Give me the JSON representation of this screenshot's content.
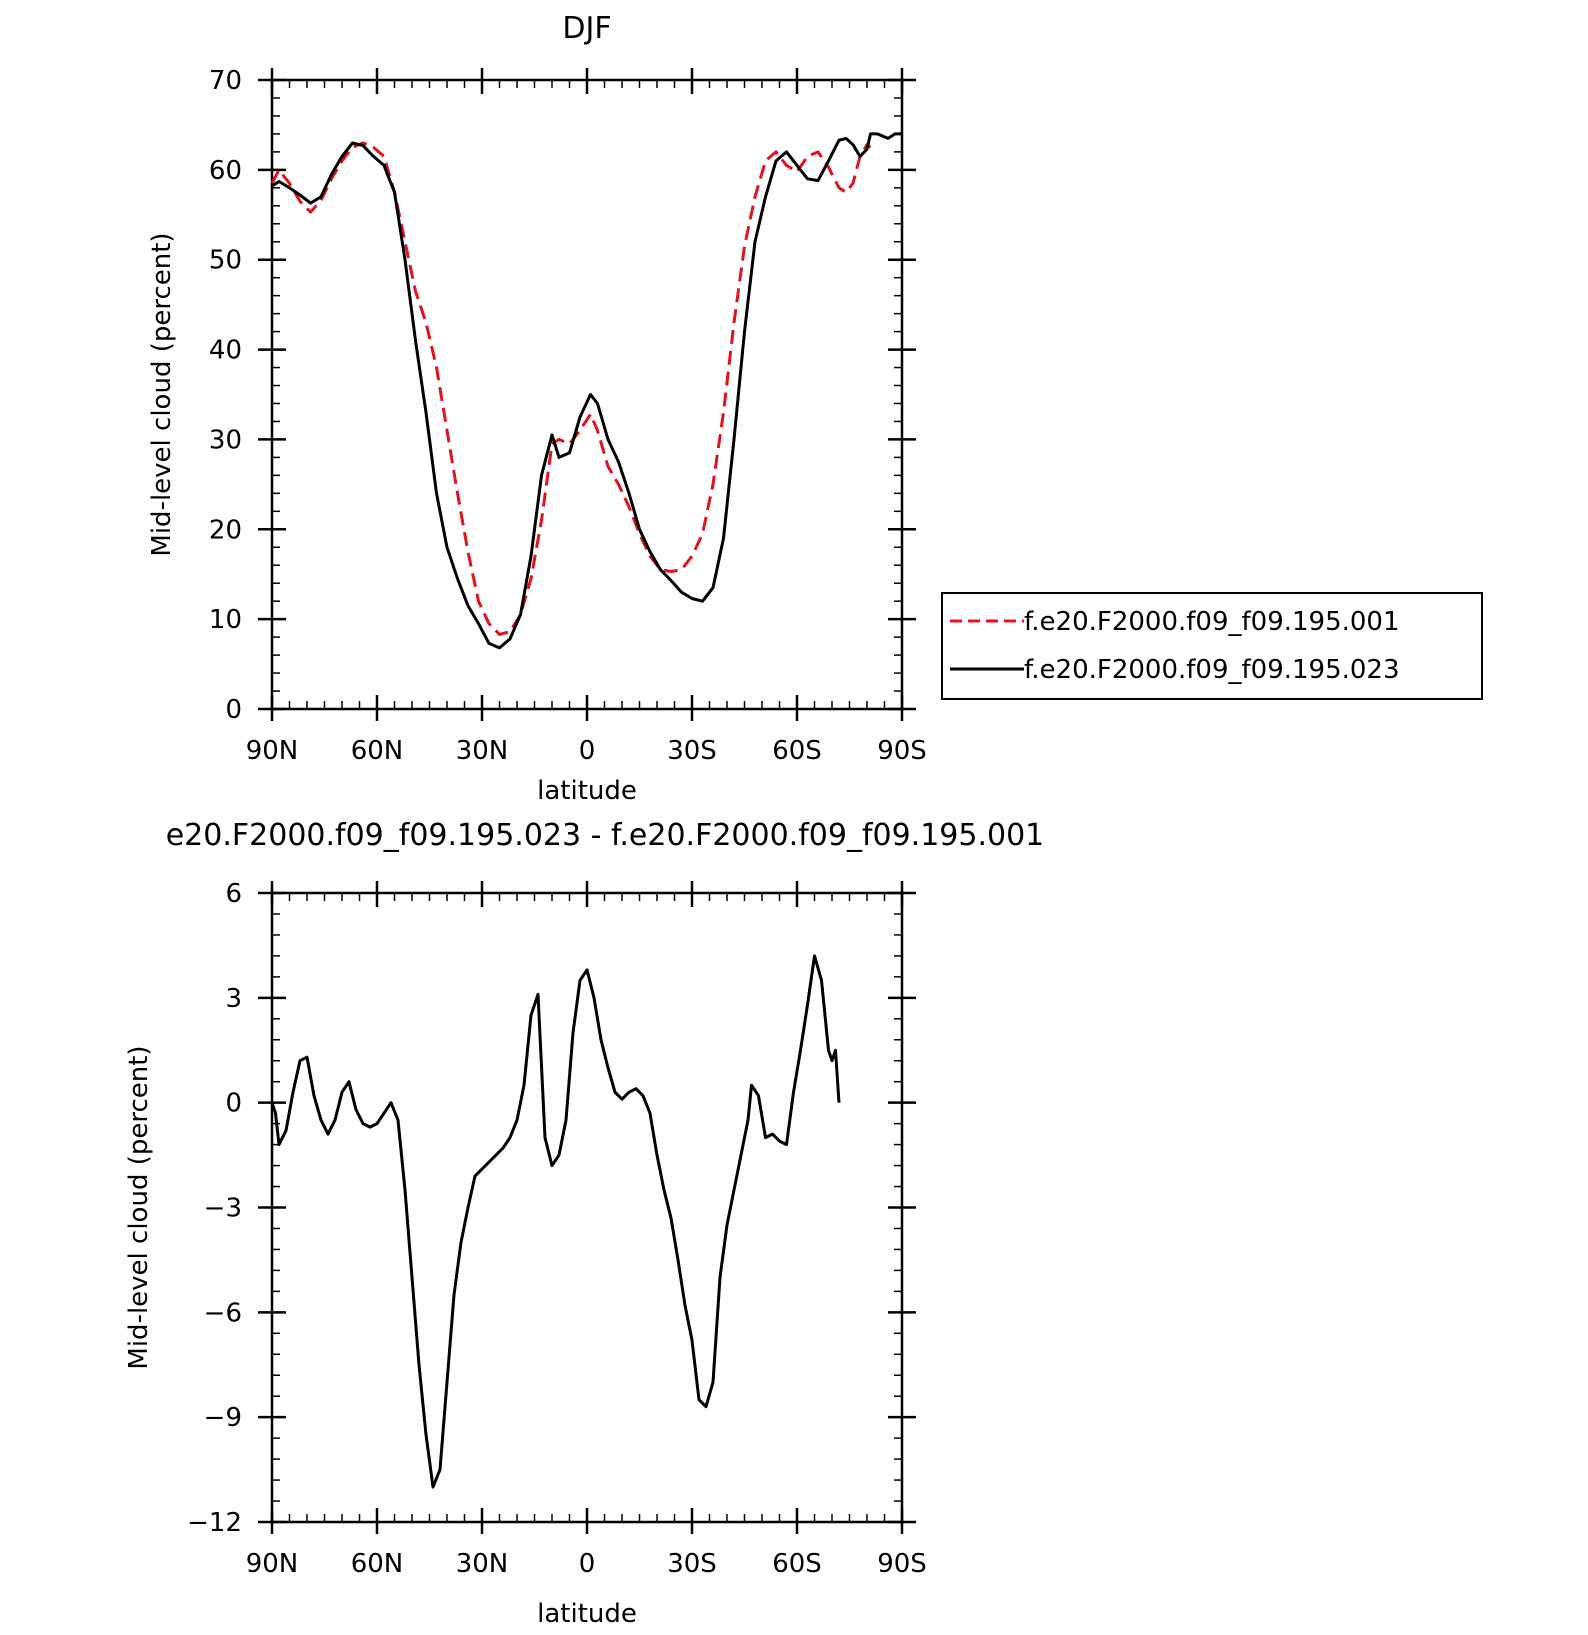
{
  "chart_data": [
    {
      "type": "line",
      "title": "DJF",
      "xlabel": "latitude",
      "ylabel": "Mid-level cloud (percent)",
      "xlim": [
        90,
        -90
      ],
      "ylim": [
        0,
        70
      ],
      "x_ticks": [
        {
          "value": 90,
          "label": "90N"
        },
        {
          "value": 60,
          "label": "60N"
        },
        {
          "value": 30,
          "label": "30N"
        },
        {
          "value": 0,
          "label": "0"
        },
        {
          "value": -30,
          "label": "30S"
        },
        {
          "value": -60,
          "label": "60S"
        },
        {
          "value": -90,
          "label": "90S"
        }
      ],
      "y_ticks": [
        {
          "value": 0,
          "label": "0"
        },
        {
          "value": 10,
          "label": "10"
        },
        {
          "value": 20,
          "label": "20"
        },
        {
          "value": 30,
          "label": "30"
        },
        {
          "value": 40,
          "label": "40"
        },
        {
          "value": 50,
          "label": "50"
        },
        {
          "value": 60,
          "label": "60"
        },
        {
          "value": 70,
          "label": "70"
        }
      ],
      "legend": {
        "placement": "right"
      },
      "series": [
        {
          "name": "f.e20.F2000.f09_f09.195.001",
          "color": "#e0141e",
          "dash": "dashed",
          "points": [
            [
              90,
              58.5
            ],
            [
              88,
              60
            ],
            [
              85,
              58.5
            ],
            [
              82,
              56.5
            ],
            [
              79,
              55.3
            ],
            [
              76,
              56.6
            ],
            [
              73,
              59
            ],
            [
              70,
              61
            ],
            [
              67,
              62.5
            ],
            [
              64,
              63
            ],
            [
              61,
              62.5
            ],
            [
              58,
              61.5
            ],
            [
              55,
              57.5
            ],
            [
              52,
              52
            ],
            [
              49,
              46.5
            ],
            [
              46,
              43
            ],
            [
              43,
              38
            ],
            [
              40,
              31
            ],
            [
              37,
              24
            ],
            [
              34,
              17.5
            ],
            [
              31,
              12
            ],
            [
              28,
              9.5
            ],
            [
              25,
              8.3
            ],
            [
              22,
              8.6
            ],
            [
              19,
              10.5
            ],
            [
              16,
              14.5
            ],
            [
              13,
              21
            ],
            [
              10,
              29.5
            ],
            [
              8,
              30
            ],
            [
              5,
              29.5
            ],
            [
              2,
              31
            ],
            [
              -1,
              32.8
            ],
            [
              -3,
              31
            ],
            [
              -6,
              27
            ],
            [
              -9,
              25
            ],
            [
              -12,
              22.5
            ],
            [
              -15,
              19.5
            ],
            [
              -18,
              17
            ],
            [
              -21,
              15.5
            ],
            [
              -24,
              15.3
            ],
            [
              -27,
              15.5
            ],
            [
              -30,
              17
            ],
            [
              -33,
              19.5
            ],
            [
              -36,
              25
            ],
            [
              -39,
              33
            ],
            [
              -42,
              43
            ],
            [
              -45,
              51.5
            ],
            [
              -48,
              57
            ],
            [
              -51,
              61
            ],
            [
              -54,
              62
            ],
            [
              -57,
              60.5
            ],
            [
              -60,
              59.8
            ],
            [
              -63,
              61.5
            ],
            [
              -66,
              62
            ],
            [
              -69,
              60.3
            ],
            [
              -72,
              58
            ],
            [
              -74,
              57.5
            ],
            [
              -76,
              58.5
            ],
            [
              -78,
              61.5
            ],
            [
              -80,
              62.8
            ],
            [
              -81,
              62.5
            ]
          ]
        },
        {
          "name": "f.e20.F2000.f09_f09.195.023",
          "color": "#000000",
          "dash": "solid",
          "points": [
            [
              90,
              58.2
            ],
            [
              88,
              58.7
            ],
            [
              85,
              58
            ],
            [
              82,
              57.2
            ],
            [
              79,
              56.3
            ],
            [
              76,
              57
            ],
            [
              73,
              59.5
            ],
            [
              70,
              61.5
            ],
            [
              67,
              63
            ],
            [
              64,
              62.7
            ],
            [
              61,
              61.5
            ],
            [
              58,
              60.5
            ],
            [
              55,
              57.5
            ],
            [
              52,
              50
            ],
            [
              49,
              41
            ],
            [
              46,
              33
            ],
            [
              43,
              24
            ],
            [
              40,
              18
            ],
            [
              37,
              14.5
            ],
            [
              34,
              11.5
            ],
            [
              31,
              9.5
            ],
            [
              28,
              7.3
            ],
            [
              25,
              6.8
            ],
            [
              22,
              7.8
            ],
            [
              19,
              10.5
            ],
            [
              16,
              17
            ],
            [
              13,
              26
            ],
            [
              10,
              30.5
            ],
            [
              8,
              28
            ],
            [
              5,
              28.5
            ],
            [
              2,
              32.5
            ],
            [
              -1,
              35
            ],
            [
              -3,
              34
            ],
            [
              -6,
              30
            ],
            [
              -9,
              27.5
            ],
            [
              -12,
              24
            ],
            [
              -15,
              20
            ],
            [
              -18,
              17.5
            ],
            [
              -21,
              15.5
            ],
            [
              -24,
              14.3
            ],
            [
              -27,
              13
            ],
            [
              -30,
              12.3
            ],
            [
              -33,
              12
            ],
            [
              -36,
              13.5
            ],
            [
              -39,
              19
            ],
            [
              -42,
              30
            ],
            [
              -45,
              42
            ],
            [
              -48,
              52
            ],
            [
              -51,
              57
            ],
            [
              -54,
              61
            ],
            [
              -57,
              62
            ],
            [
              -60,
              60.5
            ],
            [
              -63,
              59
            ],
            [
              -66,
              58.8
            ],
            [
              -69,
              61
            ],
            [
              -72,
              63.3
            ],
            [
              -74,
              63.5
            ],
            [
              -76,
              62.8
            ],
            [
              -78,
              61.5
            ],
            [
              -80,
              62.3
            ],
            [
              -81,
              64
            ],
            [
              -83,
              64
            ],
            [
              -86,
              63.5
            ],
            [
              -88,
              64
            ],
            [
              -90,
              64
            ]
          ]
        }
      ]
    },
    {
      "type": "line",
      "title": "e20.F2000.f09_f09.195.023 - f.e20.F2000.f09_f09.195.001",
      "xlabel": "latitude",
      "ylabel": "Mid-level cloud (percent)",
      "xlim": [
        90,
        -90
      ],
      "ylim": [
        -12,
        6
      ],
      "x_ticks": [
        {
          "value": 90,
          "label": "90N"
        },
        {
          "value": 60,
          "label": "60N"
        },
        {
          "value": 30,
          "label": "30N"
        },
        {
          "value": 0,
          "label": "0"
        },
        {
          "value": -30,
          "label": "30S"
        },
        {
          "value": -60,
          "label": "60S"
        },
        {
          "value": -90,
          "label": "90S"
        }
      ],
      "y_ticks": [
        {
          "value": -12,
          "label": "−12"
        },
        {
          "value": -9,
          "label": "−9"
        },
        {
          "value": -6,
          "label": "−6"
        },
        {
          "value": -3,
          "label": "−3"
        },
        {
          "value": 0,
          "label": "0"
        },
        {
          "value": 3,
          "label": "3"
        },
        {
          "value": 6,
          "label": "6"
        }
      ],
      "series": [
        {
          "color": "#000000",
          "dash": "solid",
          "points": [
            [
              90,
              0
            ],
            [
              89,
              -0.3
            ],
            [
              88,
              -1.2
            ],
            [
              86,
              -0.8
            ],
            [
              84,
              0.3
            ],
            [
              82,
              1.2
            ],
            [
              80,
              1.3
            ],
            [
              78,
              0.2
            ],
            [
              76,
              -0.5
            ],
            [
              74,
              -0.9
            ],
            [
              72,
              -0.5
            ],
            [
              70,
              0.3
            ],
            [
              68,
              0.6
            ],
            [
              66,
              -0.2
            ],
            [
              64,
              -0.6
            ],
            [
              62,
              -0.7
            ],
            [
              60,
              -0.6
            ],
            [
              58,
              -0.3
            ],
            [
              56,
              0
            ],
            [
              54,
              -0.5
            ],
            [
              52,
              -2.5
            ],
            [
              50,
              -5
            ],
            [
              48,
              -7.5
            ],
            [
              46,
              -9.5
            ],
            [
              44,
              -11
            ],
            [
              42,
              -10.5
            ],
            [
              40,
              -8
            ],
            [
              38,
              -5.5
            ],
            [
              36,
              -4
            ],
            [
              34,
              -3
            ],
            [
              32,
              -2.1
            ],
            [
              30,
              -1.9
            ],
            [
              28,
              -1.7
            ],
            [
              26,
              -1.5
            ],
            [
              24,
              -1.3
            ],
            [
              22,
              -1
            ],
            [
              20,
              -0.5
            ],
            [
              18,
              0.5
            ],
            [
              16,
              2.5
            ],
            [
              14,
              3.1
            ],
            [
              12,
              -1
            ],
            [
              10,
              -1.8
            ],
            [
              8,
              -1.5
            ],
            [
              6,
              -0.5
            ],
            [
              4,
              2
            ],
            [
              2,
              3.5
            ],
            [
              0,
              3.8
            ],
            [
              -2,
              3
            ],
            [
              -4,
              1.8
            ],
            [
              -6,
              1
            ],
            [
              -8,
              0.3
            ],
            [
              -10,
              0.1
            ],
            [
              -12,
              0.3
            ],
            [
              -14,
              0.4
            ],
            [
              -16,
              0.2
            ],
            [
              -18,
              -0.3
            ],
            [
              -20,
              -1.5
            ],
            [
              -22,
              -2.5
            ],
            [
              -24,
              -3.3
            ],
            [
              -26,
              -4.5
            ],
            [
              -28,
              -5.8
            ],
            [
              -30,
              -6.8
            ],
            [
              -32,
              -8.5
            ],
            [
              -34,
              -8.7
            ],
            [
              -36,
              -8
            ],
            [
              -38,
              -5
            ],
            [
              -40,
              -3.5
            ],
            [
              -42,
              -2.5
            ],
            [
              -44,
              -1.5
            ],
            [
              -46,
              -0.5
            ],
            [
              -47,
              0.5
            ],
            [
              -49,
              0.2
            ],
            [
              -51,
              -1
            ],
            [
              -53,
              -0.9
            ],
            [
              -55,
              -1.1
            ],
            [
              -57,
              -1.2
            ],
            [
              -59,
              0.3
            ],
            [
              -61,
              1.5
            ],
            [
              -63,
              2.8
            ],
            [
              -65,
              4.2
            ],
            [
              -67,
              3.5
            ],
            [
              -69,
              1.5
            ],
            [
              -70,
              1.2
            ],
            [
              -71,
              1.5
            ],
            [
              -72,
              0
            ]
          ]
        }
      ]
    }
  ]
}
